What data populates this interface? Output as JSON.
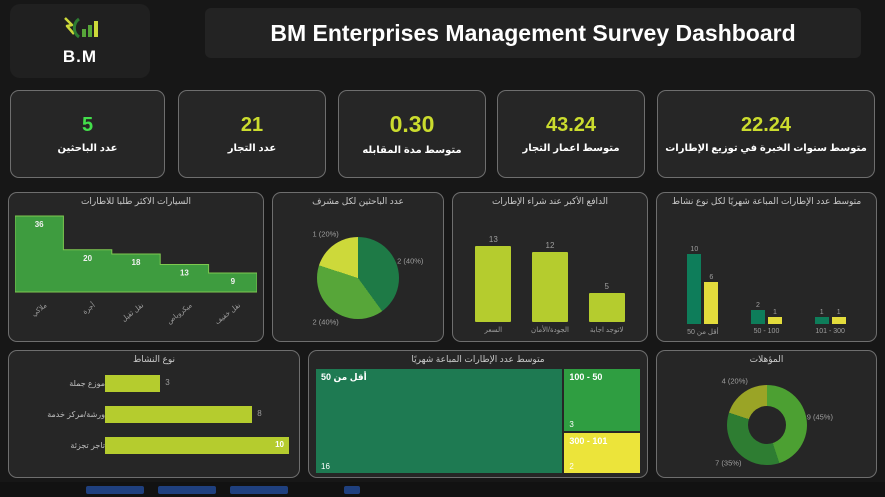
{
  "header": {
    "title": "BM Enterprises Management Survey Dashboard",
    "logo_text": "B.M"
  },
  "kpis": [
    {
      "value": "5",
      "label": "عدد الباحثين",
      "color": "#43df4b"
    },
    {
      "value": "21",
      "label": "عدد التجار",
      "color": "#cbdc2e"
    },
    {
      "value": "0.30",
      "label": "متوسط مدة المقابله",
      "color": "#cbdc2e"
    },
    {
      "value": "43.24",
      "label": "متوسط اعمار التجار",
      "color": "#cbdc2e"
    },
    {
      "value": "22.24",
      "label": "متوسط سنوات الخبرة في توزيع الإطارات",
      "color": "#cbdc2e"
    }
  ],
  "chart_data": [
    {
      "id": "cars_demand",
      "type": "area",
      "title": "السيارات الاكثر طلبا للاطارات",
      "categories": [
        "ملاكي",
        "أجرة",
        "نقل ثقيل",
        "ميكروباص",
        "نقل خفيف"
      ],
      "values": [
        36,
        20,
        18,
        13,
        9
      ],
      "color": "#3e9c3f"
    },
    {
      "id": "researchers_per_supervisor",
      "type": "pie",
      "title": "عدد الباحثين لكل مشرف",
      "slices": [
        {
          "label": "2 (40%)",
          "value": 40,
          "color": "#1e7a46"
        },
        {
          "label": "2 (40%)",
          "value": 40,
          "color": "#57a639"
        },
        {
          "label": "1 (20%)",
          "value": 20,
          "color": "#cdd93a"
        }
      ]
    },
    {
      "id": "purchase_motive",
      "type": "bar",
      "title": "الدافع الأكبر عند شراء الإطارات",
      "categories": [
        "السعر",
        "الجودة/الأمان",
        "لاتوجد اجابة"
      ],
      "values": [
        13,
        12,
        5
      ],
      "color": "#b5cc2e"
    },
    {
      "id": "tires_by_activity",
      "type": "grouped-bar",
      "title": "متوسط عدد الإطارات المباعة شهريًا لكل نوع نشاط",
      "categories": [
        "أقل من 50",
        "50 - 100",
        "101 - 300"
      ],
      "series": [
        {
          "name": "series-1",
          "color": "#0e7d5a",
          "values": [
            10,
            2,
            1
          ]
        },
        {
          "name": "series-2",
          "color": "#e3dc3c",
          "values": [
            6,
            1,
            1
          ]
        }
      ]
    },
    {
      "id": "activity_type",
      "type": "hbar",
      "title": "نوع النشاط",
      "categories": [
        "موزع جملة",
        "ورشة/مركز خدمة",
        "تاجر تجزئة"
      ],
      "values": [
        3,
        8,
        10
      ],
      "color": "#b5cc2e"
    },
    {
      "id": "tires_treemap",
      "type": "treemap",
      "title": "متوسط عدد الإطارات المباعة شهريًا",
      "blocks": [
        {
          "label": "أقل من 50",
          "value": 16,
          "color": "#1e7a52"
        },
        {
          "label": "50 - 100",
          "value": 3,
          "color": "#2f9e41"
        },
        {
          "label": "101 - 300",
          "value": 2,
          "color": "#ece43a"
        }
      ]
    },
    {
      "id": "qualifications",
      "type": "donut",
      "title": "المؤهلات",
      "slices": [
        {
          "label": "9 (45%)",
          "value": 45,
          "color": "#4ca032"
        },
        {
          "label": "7 (35%)",
          "value": 35,
          "color": "#2e7d32"
        },
        {
          "label": "4 (20%)",
          "value": 20,
          "color": "#9aa426"
        }
      ]
    }
  ]
}
